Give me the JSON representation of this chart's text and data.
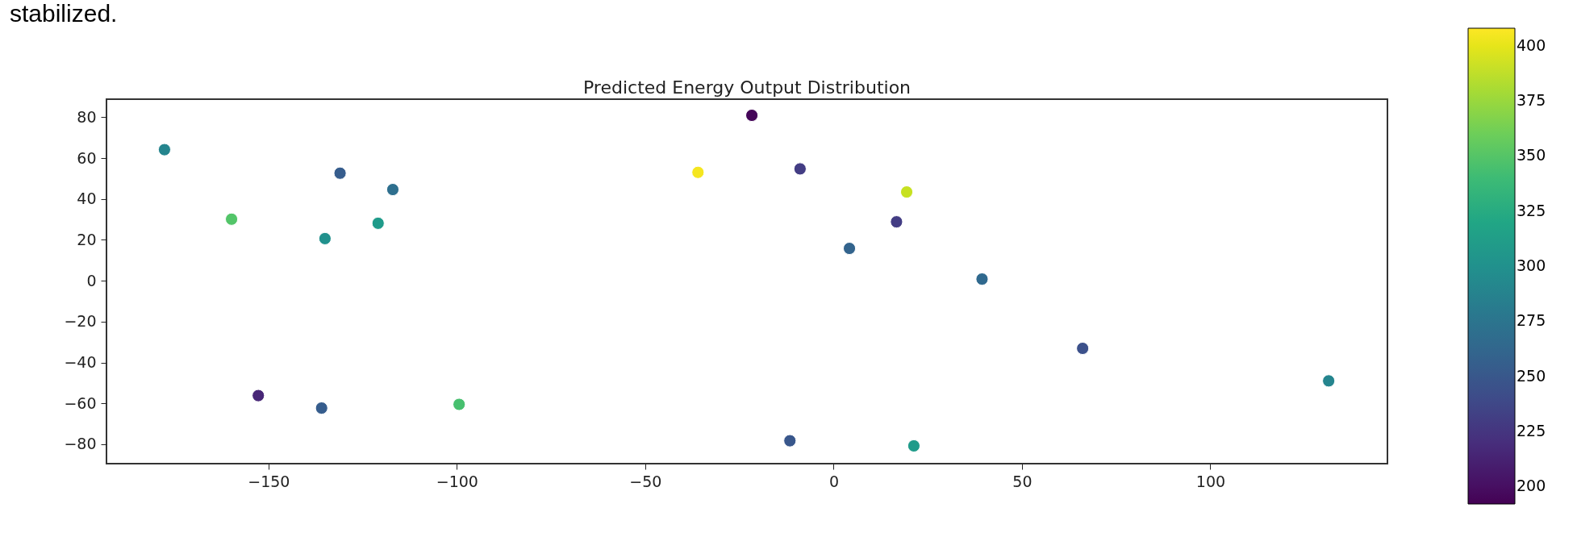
{
  "chart_data": {
    "type": "scatter",
    "title": "Predicted Energy Output Distribution",
    "annotations": [
      "stabilized."
    ],
    "x": [
      -177.6,
      -131,
      -117,
      -159.8,
      -120.9,
      -135,
      -152.7,
      -135.9,
      -99.4,
      -21.7,
      -36,
      -8.9,
      19.4,
      16.7,
      4.2,
      39.4,
      66.1,
      131.4,
      -11.6,
      21.3
    ],
    "values": [
      64.1,
      52.6,
      44.6,
      30.1,
      28.1,
      20.6,
      -56.2,
      -62.3,
      -60.5,
      80.9,
      53,
      54.7,
      43.4,
      28.8,
      15.8,
      0.8,
      -33.1,
      -49,
      -78.3,
      -80.8
    ],
    "cvalues": [
      290,
      255,
      270,
      350,
      310,
      300,
      215,
      255,
      345,
      195,
      405,
      230,
      390,
      230,
      260,
      265,
      245,
      290,
      250,
      310
    ],
    "clim": [
      192,
      408
    ],
    "cticks": [
      200,
      225,
      250,
      275,
      300,
      325,
      350,
      375,
      400
    ],
    "xlim": [
      -193,
      147
    ],
    "xticks": [
      -150,
      -100,
      -50,
      0,
      50,
      100
    ],
    "ylim": [
      -89.5,
      88.8
    ],
    "yticks": [
      -80,
      -60,
      -40,
      -20,
      0,
      20,
      40,
      60,
      80
    ],
    "grid": false,
    "marker": "circle"
  }
}
